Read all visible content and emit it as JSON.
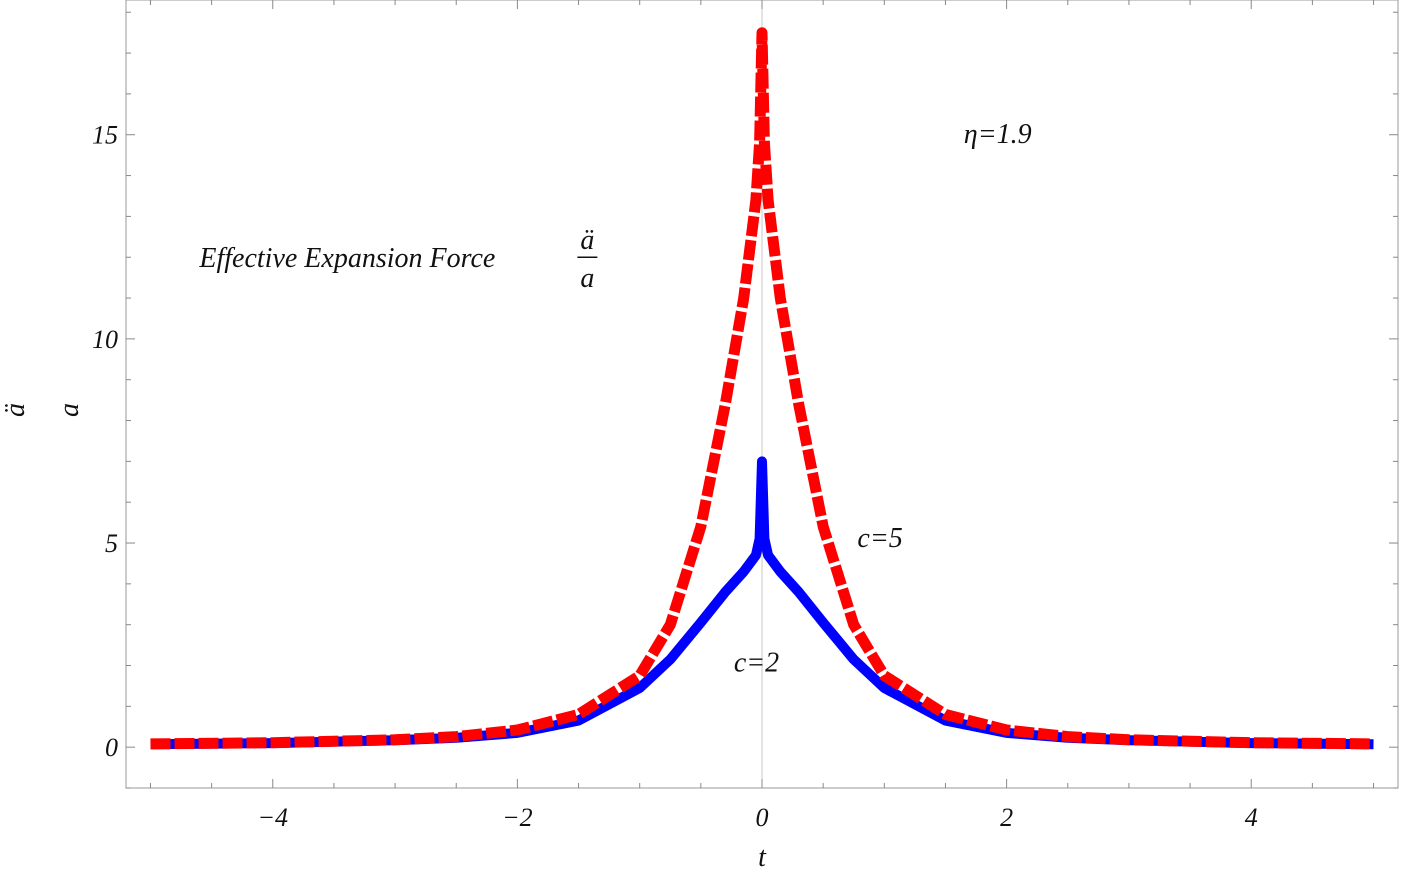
{
  "chart_data": {
    "type": "line",
    "title": "",
    "xlabel": "t",
    "ylabel": {
      "numerator": "ä",
      "denominator": "a"
    },
    "xlim": [
      -5.2,
      5.2
    ],
    "ylim": [
      -1,
      18.3
    ],
    "x_ticks": [
      -4,
      -2,
      0,
      2,
      4
    ],
    "x_tick_labels": [
      "−4",
      "−2",
      "0",
      "2",
      "4"
    ],
    "y_ticks": [
      0,
      5,
      10,
      15
    ],
    "y_tick_labels": [
      "0",
      "5",
      "10",
      "15"
    ],
    "grid": false,
    "series": [
      {
        "name": "c=2",
        "color": "#0000ff",
        "style": "solid",
        "x": [
          -5,
          -4,
          -3,
          -2.5,
          -2,
          -1.5,
          -1,
          -0.75,
          -0.5,
          -0.3,
          -0.15,
          -0.05,
          -0.02,
          0,
          0.02,
          0.05,
          0.15,
          0.3,
          0.5,
          0.75,
          1,
          1.5,
          2,
          2.5,
          3,
          4,
          5
        ],
        "y": [
          0.07,
          0.1,
          0.17,
          0.23,
          0.35,
          0.65,
          1.45,
          2.15,
          3.05,
          3.8,
          4.3,
          4.7,
          5.1,
          7.0,
          5.1,
          4.7,
          4.3,
          3.8,
          3.05,
          2.15,
          1.45,
          0.65,
          0.35,
          0.23,
          0.17,
          0.1,
          0.07
        ]
      },
      {
        "name": "c=5",
        "color": "#ff0000",
        "style": "dashed",
        "x": [
          -5,
          -4,
          -3,
          -2.5,
          -2,
          -1.5,
          -1,
          -0.75,
          -0.5,
          -0.3,
          -0.15,
          -0.05,
          -0.02,
          0,
          0.02,
          0.05,
          0.15,
          0.3,
          0.5,
          0.75,
          1,
          1.5,
          2,
          2.5,
          3,
          4,
          5
        ],
        "y": [
          0.08,
          0.11,
          0.18,
          0.26,
          0.42,
          0.8,
          1.75,
          3.0,
          5.4,
          8.4,
          11.0,
          13.4,
          14.8,
          17.5,
          14.8,
          13.4,
          11.0,
          8.4,
          5.4,
          3.0,
          1.75,
          0.8,
          0.42,
          0.26,
          0.18,
          0.11,
          0.08
        ]
      }
    ],
    "annotations": [
      {
        "id": "eta",
        "text": "η=1.9",
        "x": 1.65,
        "y": 14.8
      },
      {
        "id": "c5",
        "text": "c=5",
        "x": 0.78,
        "y": 4.9
      },
      {
        "id": "c2",
        "text": "c=2",
        "x": -0.23,
        "y": 1.85
      }
    ],
    "inline_title": {
      "prefix": "Effective  Expansion Force",
      "numerator": "ä",
      "denominator": "a",
      "x": -4.6,
      "y": 12
    }
  }
}
